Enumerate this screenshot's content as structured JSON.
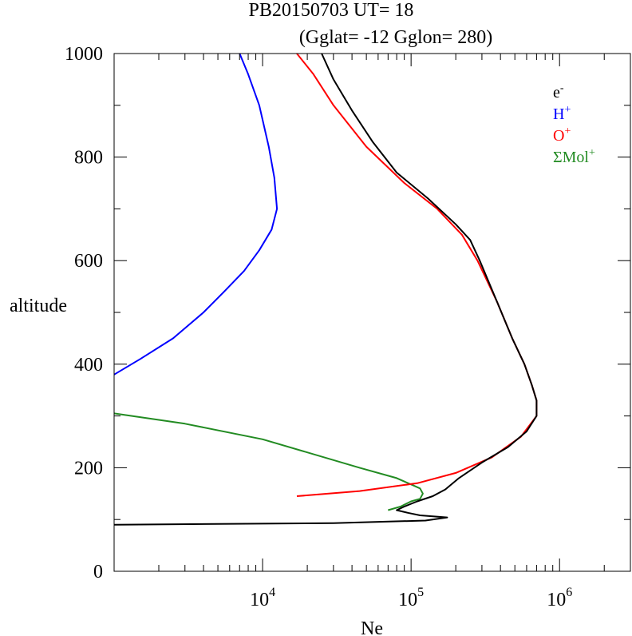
{
  "chart_data": {
    "type": "line",
    "title_line1": "PB20150703   UT=  18",
    "title_line2": "(Gglat= -12   Gglon=  280)",
    "xlabel": "Ne",
    "ylabel": "altitude",
    "x_scale": "log",
    "xlim": [
      1000,
      3000000
    ],
    "ylim": [
      0,
      1000
    ],
    "x_ticks": [
      {
        "value": 10000,
        "label_base": "10",
        "label_exp": "4"
      },
      {
        "value": 100000,
        "label_base": "10",
        "label_exp": "5"
      },
      {
        "value": 1000000,
        "label_base": "10",
        "label_exp": "6"
      }
    ],
    "y_ticks": [
      {
        "value": 0,
        "label": "0"
      },
      {
        "value": 200,
        "label": "200"
      },
      {
        "value": 400,
        "label": "400"
      },
      {
        "value": 600,
        "label": "600"
      },
      {
        "value": 800,
        "label": "800"
      },
      {
        "value": 1000,
        "label": "1000"
      }
    ],
    "legend_position": "top-right",
    "series": [
      {
        "name": "e",
        "name_sup": "-",
        "color": "#000000",
        "points": [
          [
            1000,
            90
          ],
          [
            30000,
            93
          ],
          [
            125000,
            98
          ],
          [
            175000,
            104
          ],
          [
            115000,
            108
          ],
          [
            95000,
            113
          ],
          [
            80000,
            118
          ],
          [
            90000,
            125
          ],
          [
            110000,
            135
          ],
          [
            140000,
            145
          ],
          [
            170000,
            158
          ],
          [
            210000,
            180
          ],
          [
            300000,
            210
          ],
          [
            450000,
            240
          ],
          [
            600000,
            270
          ],
          [
            700000,
            300
          ],
          [
            700000,
            330
          ],
          [
            650000,
            360
          ],
          [
            580000,
            400
          ],
          [
            480000,
            450
          ],
          [
            380000,
            520
          ],
          [
            290000,
            600
          ],
          [
            250000,
            640
          ],
          [
            200000,
            670
          ],
          [
            130000,
            720
          ],
          [
            80000,
            770
          ],
          [
            55000,
            830
          ],
          [
            40000,
            890
          ],
          [
            30000,
            950
          ],
          [
            25000,
            1000
          ]
        ]
      },
      {
        "name": "H",
        "name_sup": "+",
        "color": "#0000ff",
        "points": [
          [
            1000,
            380
          ],
          [
            1500,
            410
          ],
          [
            2500,
            450
          ],
          [
            4000,
            500
          ],
          [
            5500,
            540
          ],
          [
            7500,
            580
          ],
          [
            9500,
            620
          ],
          [
            11500,
            660
          ],
          [
            12500,
            700
          ],
          [
            12000,
            760
          ],
          [
            11000,
            820
          ],
          [
            9500,
            900
          ],
          [
            8000,
            960
          ],
          [
            7000,
            1000
          ]
        ]
      },
      {
        "name": "O",
        "name_sup": "+",
        "color": "#ff0000",
        "points": [
          [
            17000,
            145
          ],
          [
            45000,
            155
          ],
          [
            110000,
            170
          ],
          [
            200000,
            190
          ],
          [
            350000,
            220
          ],
          [
            550000,
            260
          ],
          [
            700000,
            300
          ],
          [
            700000,
            330
          ],
          [
            650000,
            360
          ],
          [
            580000,
            400
          ],
          [
            480000,
            450
          ],
          [
            380000,
            520
          ],
          [
            280000,
            600
          ],
          [
            220000,
            650
          ],
          [
            150000,
            700
          ],
          [
            90000,
            750
          ],
          [
            50000,
            820
          ],
          [
            30000,
            900
          ],
          [
            22000,
            960
          ],
          [
            17000,
            1000
          ]
        ]
      },
      {
        "name": "ΣMol",
        "name_sup": "+",
        "color": "#228b22",
        "points": [
          [
            1000,
            305
          ],
          [
            3000,
            285
          ],
          [
            10000,
            255
          ],
          [
            45000,
            200
          ],
          [
            80000,
            180
          ],
          [
            105000,
            165
          ],
          [
            115000,
            160
          ],
          [
            120000,
            150
          ],
          [
            115000,
            140
          ],
          [
            100000,
            135
          ],
          [
            85000,
            125
          ],
          [
            70000,
            118
          ]
        ]
      }
    ]
  }
}
